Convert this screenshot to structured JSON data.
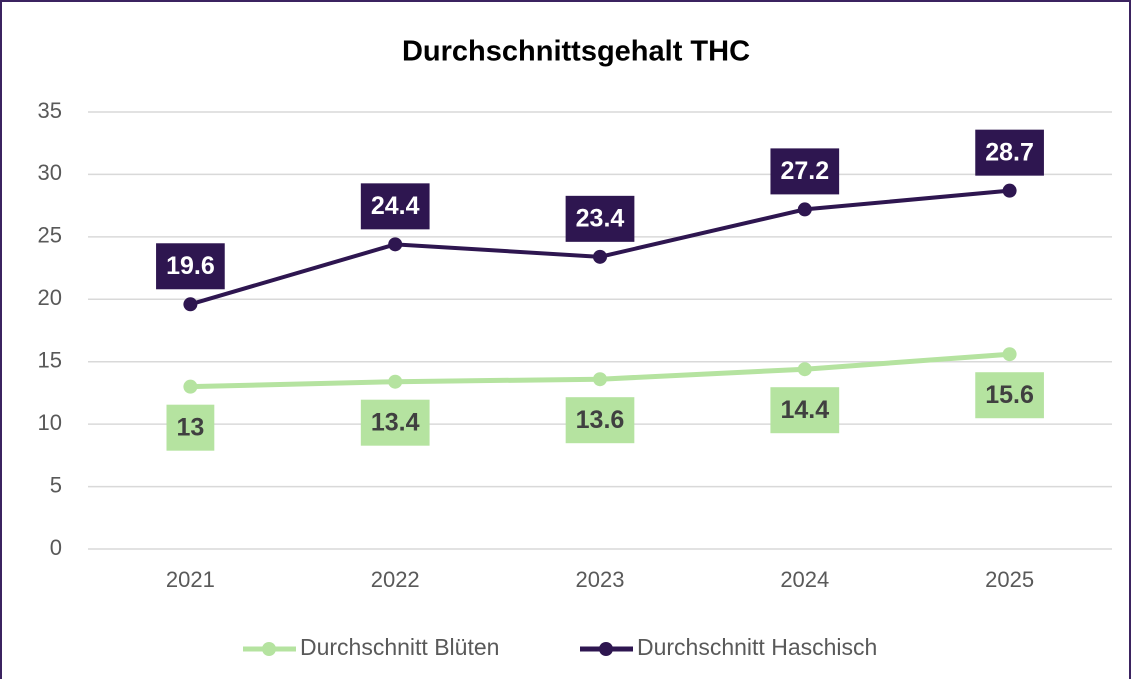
{
  "chart_data": {
    "type": "line",
    "title": "Durchschnittsgehalt THC",
    "categories": [
      "2021",
      "2022",
      "2023",
      "2024",
      "2025"
    ],
    "series": [
      {
        "name": "Durchschnitt Blüten",
        "color": "#b5e3a0",
        "values": [
          13,
          13.4,
          13.6,
          14.4,
          15.6
        ]
      },
      {
        "name": "Durchschnitt Haschisch",
        "color": "#2e1650",
        "values": [
          19.6,
          24.4,
          23.4,
          27.2,
          28.7
        ]
      }
    ],
    "ylim": [
      0,
      35
    ],
    "yticks": [
      0,
      5,
      10,
      15,
      20,
      25,
      30,
      35
    ],
    "grid": true,
    "legend": "bottom"
  }
}
